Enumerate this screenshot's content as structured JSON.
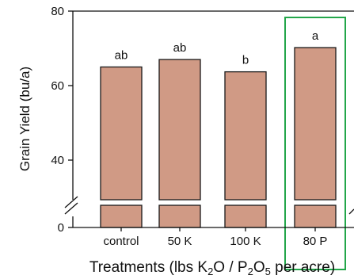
{
  "chart_data": {
    "type": "bar",
    "ylabel": "Grain Yield (bu/a)",
    "xlabel": {
      "parts": [
        {
          "t": "Treatments (lbs K"
        },
        {
          "t": "2",
          "sub": true
        },
        {
          "t": "O / P"
        },
        {
          "t": "2",
          "sub": true
        },
        {
          "t": "O"
        },
        {
          "t": "5",
          "sub": true
        },
        {
          "t": " per acre)"
        }
      ]
    },
    "categories": [
      "control",
      "50 K",
      "100 K",
      "80 P"
    ],
    "values": [
      65,
      67,
      63.7,
      70.2
    ],
    "significance_letters": [
      "ab",
      "ab",
      "b",
      "a"
    ],
    "yticks": [
      0,
      40,
      60,
      80
    ],
    "ylim": [
      0,
      80
    ],
    "axis_break": {
      "from": 0,
      "to": 30
    },
    "highlighted_category": "80 P",
    "colors": {
      "bar_fill": "#D09A85",
      "bar_stroke": "#1a1a1a",
      "highlight_box": "#23A64A",
      "axis": "#111111"
    }
  }
}
